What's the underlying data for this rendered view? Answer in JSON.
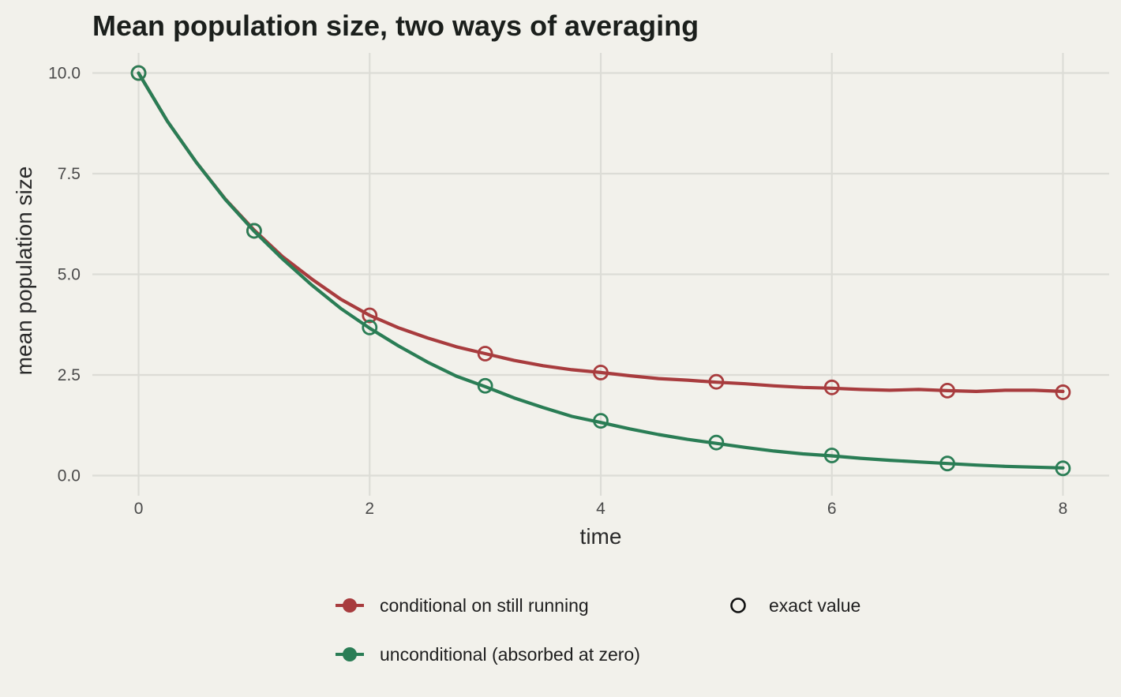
{
  "chart_data": {
    "type": "line",
    "title": "Mean population size, two ways of averaging",
    "xlabel": "time",
    "ylabel": "mean population size",
    "xlim": [
      -0.4,
      8.4
    ],
    "ylim": [
      -0.5,
      10.5
    ],
    "x_ticks": [
      0,
      2,
      4,
      6,
      8
    ],
    "x_tick_labels": [
      "0",
      "2",
      "4",
      "6",
      "8"
    ],
    "y_ticks": [
      0,
      2.5,
      5,
      7.5,
      10
    ],
    "y_tick_labels": [
      "0.0",
      "2.5",
      "5.0",
      "7.5",
      "10.0"
    ],
    "grid": true,
    "legend_position": "bottom",
    "series": [
      {
        "name": "conditional on still running",
        "color": "#a83c3e",
        "x": [
          0,
          0.25,
          0.5,
          0.75,
          1,
          1.25,
          1.5,
          1.75,
          2,
          2.25,
          2.5,
          2.75,
          3,
          3.25,
          3.5,
          3.75,
          4,
          4.25,
          4.5,
          4.75,
          5,
          5.25,
          5.5,
          5.75,
          6,
          6.25,
          6.5,
          6.75,
          7,
          7.25,
          7.5,
          7.75,
          8
        ],
        "values": [
          10.0,
          8.8,
          7.78,
          6.87,
          6.1,
          5.43,
          4.88,
          4.38,
          3.98,
          3.67,
          3.42,
          3.2,
          3.03,
          2.86,
          2.73,
          2.63,
          2.56,
          2.48,
          2.41,
          2.37,
          2.32,
          2.28,
          2.23,
          2.19,
          2.17,
          2.14,
          2.12,
          2.14,
          2.11,
          2.09,
          2.12,
          2.12,
          2.09
        ]
      },
      {
        "name": "unconditional (absorbed at zero)",
        "color": "#2a7d55",
        "x": [
          0,
          0.25,
          0.5,
          0.75,
          1,
          1.25,
          1.5,
          1.75,
          2,
          2.25,
          2.5,
          2.75,
          3,
          3.25,
          3.5,
          3.75,
          4,
          4.25,
          4.5,
          4.75,
          5,
          5.25,
          5.5,
          5.75,
          6,
          6.25,
          6.5,
          6.75,
          7,
          7.25,
          7.5,
          7.75,
          8
        ],
        "values": [
          10.0,
          8.8,
          7.78,
          6.86,
          6.07,
          5.37,
          4.73,
          4.15,
          3.66,
          3.22,
          2.82,
          2.47,
          2.21,
          1.93,
          1.69,
          1.47,
          1.32,
          1.16,
          1.02,
          0.9,
          0.8,
          0.7,
          0.61,
          0.54,
          0.49,
          0.43,
          0.38,
          0.34,
          0.3,
          0.26,
          0.23,
          0.21,
          0.19
        ]
      }
    ],
    "exact_points": [
      {
        "series": "conditional on still running",
        "x": [
          0,
          1,
          2,
          3,
          4,
          5,
          6,
          7,
          8
        ],
        "values": [
          10.0,
          6.08,
          3.98,
          3.03,
          2.56,
          2.33,
          2.19,
          2.11,
          2.07
        ]
      },
      {
        "series": "unconditional (absorbed at zero)",
        "x": [
          0,
          1,
          2,
          3,
          4,
          5,
          6,
          7,
          8
        ],
        "values": [
          10.0,
          6.08,
          3.68,
          2.23,
          1.36,
          0.82,
          0.5,
          0.3,
          0.18
        ]
      }
    ],
    "legend": {
      "series_entries": [
        "conditional on still running",
        "unconditional (absorbed at zero)"
      ],
      "marker_entry": "exact value"
    }
  }
}
